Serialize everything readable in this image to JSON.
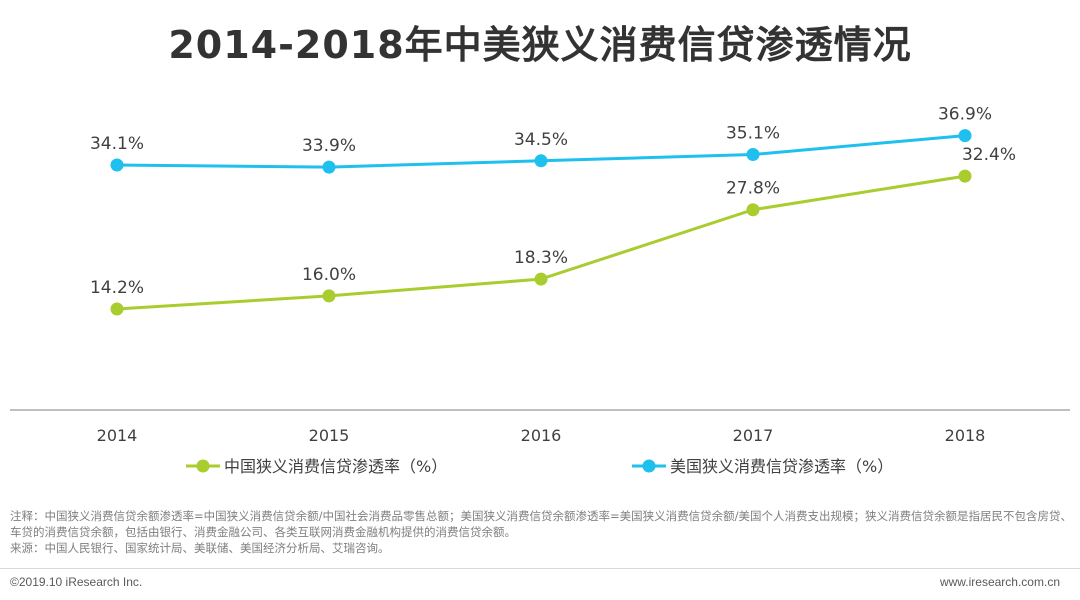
{
  "chart_data": {
    "type": "line",
    "title": "2014-2018年中美狭义消费信贷渗透情况",
    "categories": [
      "2014",
      "2015",
      "2016",
      "2017",
      "2018"
    ],
    "ylim": [
      0,
      45
    ],
    "grid": false,
    "legend_position": "bottom",
    "series": [
      {
        "name": "中国狭义消费信贷渗透率（%）",
        "color": "#a9cc2e",
        "values": [
          14.2,
          16.0,
          18.3,
          27.8,
          32.4
        ],
        "labels": [
          "14.2%",
          "16.0%",
          "18.3%",
          "27.8%",
          "32.4%"
        ]
      },
      {
        "name": "美国狭义消费信贷渗透率（%）",
        "color": "#1fc0ee",
        "values": [
          34.1,
          33.9,
          34.5,
          35.1,
          36.9
        ],
        "labels": [
          "34.1%",
          "33.9%",
          "34.5%",
          "35.1%",
          "36.9%"
        ]
      }
    ]
  },
  "notes": {
    "line1": "注释：中国狭义消费信贷余额渗透率=中国狭义消费信贷余额/中国社会消费品零售总额；美国狭义消费信贷余额渗透率=美国狭义消费信贷余额/美国个人消费支出规模；狭义消费信贷余额是指居民不包含房贷、车贷的消费信贷余额，包括由银行、消费金融公司、各类互联网消费金融机构提供的消费信贷余额。",
    "source": "来源：中国人民银行、国家统计局、美联储、美国经济分析局、艾瑞咨询。"
  },
  "footer": {
    "copyright": "©2019.10 iResearch Inc.",
    "website": "www.iresearch.com.cn"
  }
}
